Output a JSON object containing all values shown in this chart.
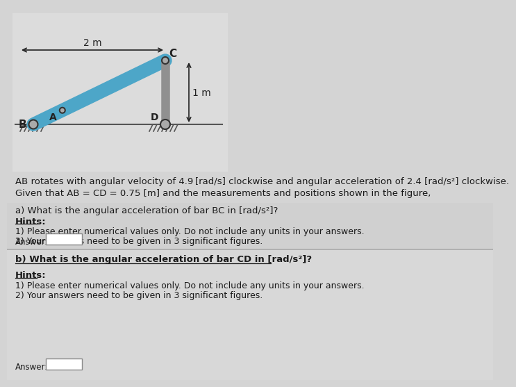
{
  "bg_color": "#d4d4d4",
  "diagram_bg": "#dcdcdc",
  "line1_text": "AB rotates with angular velocity of 4.9 [rad/s] clockwise and angular acceleration of 2.4 [rad/s²] clockwise.",
  "line2_text": "Given that AB = CD = 0.75 [m] and the measurements and positions shown in the figure,",
  "q_a_label": "a) What is the angular acceleration of bar BC in [rad/s²]?",
  "q_b_label": "b) What is the angular acceleration of bar CD in [rad/s²]?",
  "hints_title": "Hints:",
  "hint1": "1) Please enter numerical values only. Do not include any units in your answers.",
  "hint2": "2) Your answers need to be given in 3 significant figures.",
  "answer_label": "Answer:",
  "dim_2m": "2 m",
  "dim_1m": "1 m",
  "label_B": "B",
  "label_C": "C",
  "label_D": "D",
  "label_A": "A",
  "bar_color": "#4da6c8",
  "rod_color": "#909090",
  "text_color": "#1a1a1a",
  "hatch_color": "#555555",
  "ground_color": "#555555"
}
